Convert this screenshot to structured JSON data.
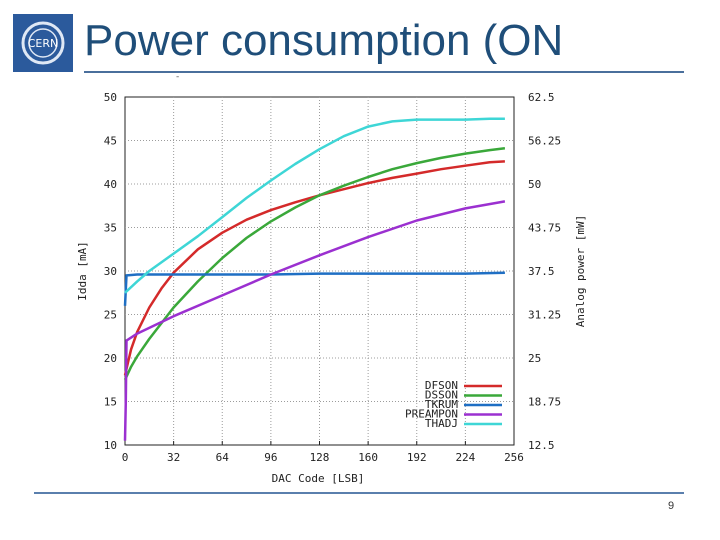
{
  "slide": {
    "title": "Power consumption (ON",
    "page_number": "9",
    "mark": "-",
    "logo_text": "CERN"
  },
  "colors": {
    "title": "#1f4e79",
    "rule": "#4a6f9c",
    "grid": "#9c9c9c",
    "DFSON": "#d42a2a",
    "DSSON": "#3aa83a",
    "TKRUM": "#1f6fc4",
    "PREAMPON": "#9b30d0",
    "THADJ": "#3ed6d6"
  },
  "chart_data": {
    "type": "line",
    "title": "",
    "xlabel": "DAC Code [LSB]",
    "ylabel": "Idda [mA]",
    "y2label": "Analog power [mW]",
    "xlim": [
      0,
      256
    ],
    "ylim": [
      10,
      50
    ],
    "y2lim": [
      12.5,
      62.5
    ],
    "xticks": [
      0,
      32,
      64,
      96,
      128,
      160,
      192,
      224,
      256
    ],
    "yticks": [
      10,
      15,
      20,
      25,
      30,
      35,
      40,
      45,
      50
    ],
    "y2ticks": [
      "12.5",
      "18.75",
      "25",
      "31.25",
      "37.5",
      "43.75",
      "50",
      "56.25",
      "62.5"
    ],
    "grid": true,
    "legend_position": "bottom-right",
    "series": [
      {
        "name": "DFSON",
        "color": "#d42a2a",
        "x": [
          0,
          2,
          4,
          8,
          16,
          24,
          32,
          48,
          64,
          80,
          96,
          112,
          128,
          144,
          160,
          176,
          192,
          208,
          224,
          240,
          250
        ],
        "y": [
          18,
          19.5,
          21,
          23,
          25.8,
          28,
          29.8,
          32.5,
          34.4,
          35.9,
          37,
          37.9,
          38.7,
          39.4,
          40.1,
          40.7,
          41.2,
          41.7,
          42.1,
          42.5,
          42.6
        ]
      },
      {
        "name": "DSSON",
        "color": "#3aa83a",
        "x": [
          0,
          4,
          8,
          16,
          32,
          48,
          64,
          80,
          96,
          112,
          128,
          144,
          160,
          176,
          192,
          208,
          224,
          240,
          250
        ],
        "y": [
          17.5,
          19,
          20.2,
          22.2,
          25.8,
          28.8,
          31.5,
          33.8,
          35.7,
          37.3,
          38.7,
          39.8,
          40.8,
          41.7,
          42.4,
          43,
          43.5,
          43.9,
          44.1
        ]
      },
      {
        "name": "TKRUM",
        "color": "#1f6fc4",
        "x": [
          0,
          1,
          8,
          32,
          64,
          96,
          128,
          160,
          192,
          224,
          250
        ],
        "y": [
          26,
          29.5,
          29.6,
          29.6,
          29.6,
          29.6,
          29.7,
          29.7,
          29.7,
          29.7,
          29.8
        ]
      },
      {
        "name": "PREAMPON",
        "color": "#9b30d0",
        "x": [
          0,
          0.5,
          1,
          8,
          32,
          64,
          96,
          128,
          160,
          192,
          224,
          250
        ],
        "y": [
          10.5,
          15,
          22,
          22.8,
          24.8,
          27.2,
          29.6,
          31.8,
          33.9,
          35.8,
          37.2,
          38
        ]
      },
      {
        "name": "THADJ",
        "color": "#3ed6d6",
        "x": [
          0,
          8,
          16,
          32,
          48,
          64,
          80,
          96,
          112,
          128,
          144,
          160,
          176,
          192,
          208,
          224,
          240,
          250
        ],
        "y": [
          27.5,
          28.8,
          30,
          32,
          34,
          36.2,
          38.4,
          40.4,
          42.3,
          44,
          45.5,
          46.6,
          47.2,
          47.4,
          47.4,
          47.4,
          47.5,
          47.5
        ]
      }
    ]
  }
}
